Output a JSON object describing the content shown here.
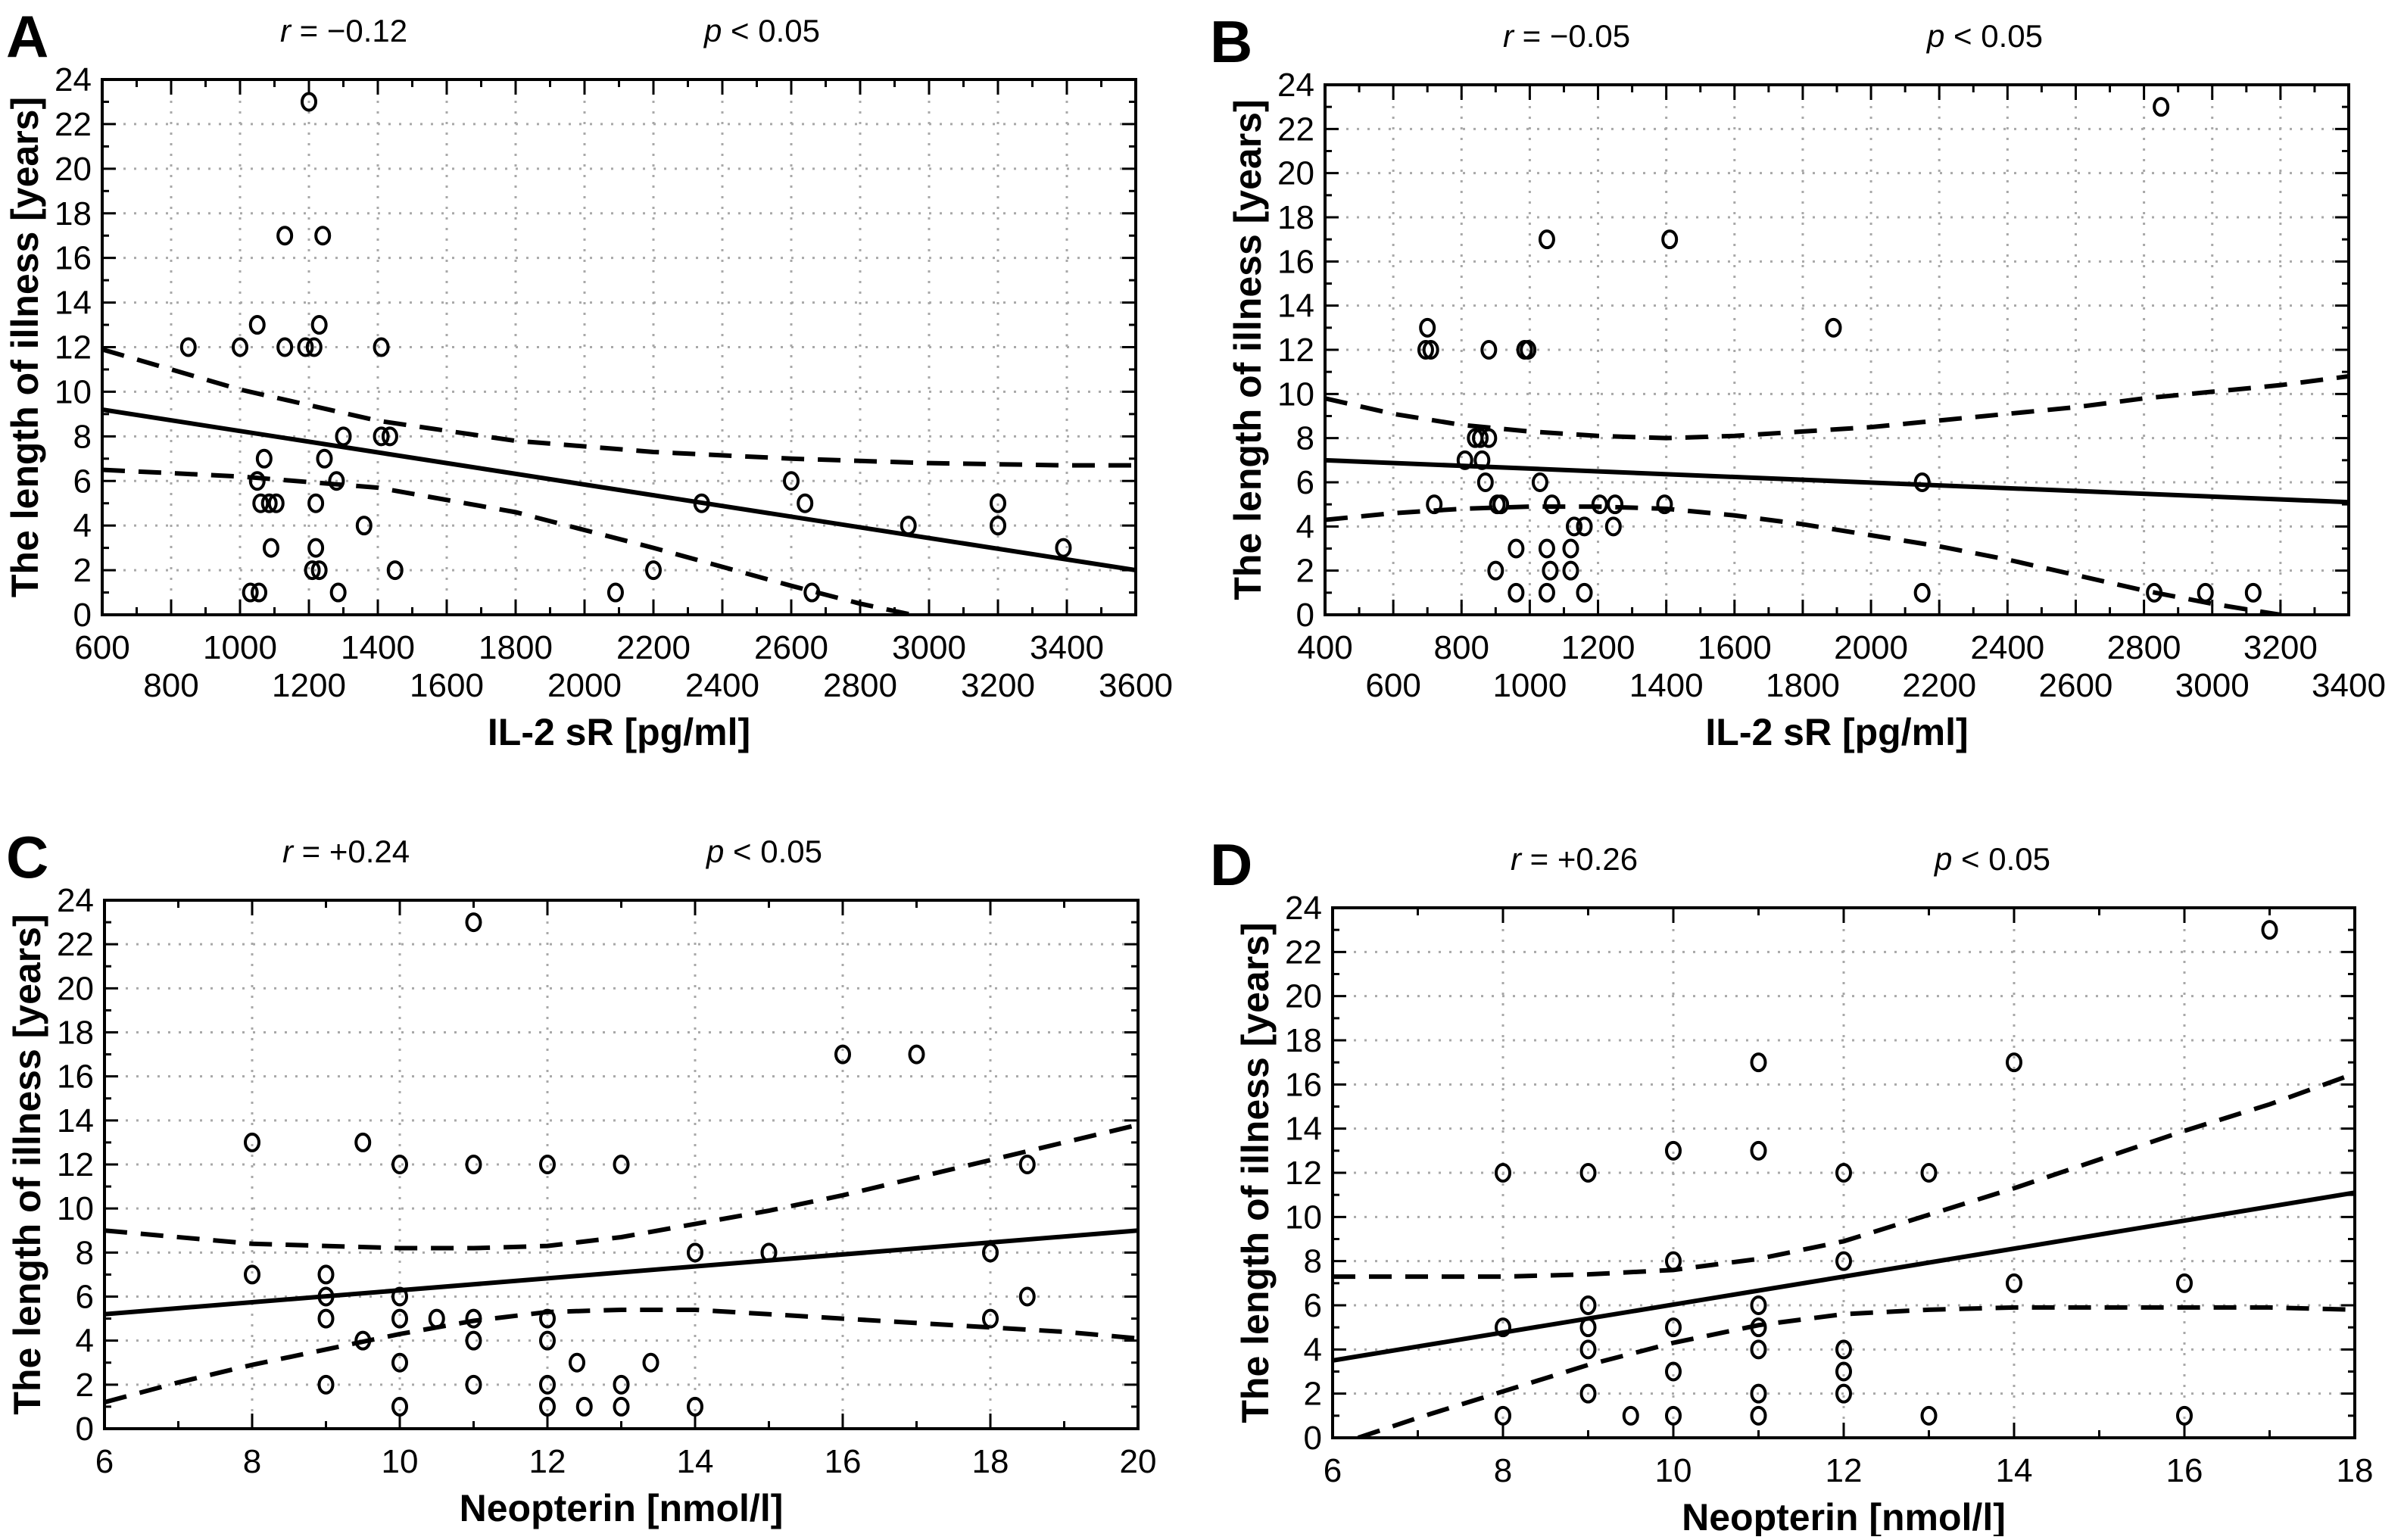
{
  "figure": {
    "stat_prefix_r": "r",
    "stat_prefix_p": "p"
  },
  "chart_data": [
    {
      "id": "A",
      "type": "scatter",
      "panel_label": "A",
      "r_text": "= −0.12",
      "p_text": "< 0.05",
      "xlabel": "IL-2 sR [pg/ml]",
      "ylabel": "The length of illness [years]",
      "xlim": [
        600,
        3600
      ],
      "ylim": [
        0,
        24
      ],
      "xticks_row1": [
        600,
        1000,
        1400,
        1800,
        2200,
        2600,
        3000,
        3400
      ],
      "xticks_row2": [
        800,
        1200,
        1600,
        2000,
        2400,
        2800,
        3200,
        3600
      ],
      "yticks": [
        0,
        2,
        4,
        6,
        8,
        10,
        12,
        14,
        16,
        18,
        20,
        22,
        24
      ],
      "grid": true,
      "x_minor_step": 100,
      "y_minor_step": 1,
      "points": [
        [
          1200,
          23
        ],
        [
          1130,
          17
        ],
        [
          1240,
          17
        ],
        [
          1050,
          13
        ],
        [
          1230,
          13
        ],
        [
          850,
          12
        ],
        [
          1000,
          12
        ],
        [
          1130,
          12
        ],
        [
          1190,
          12
        ],
        [
          1215,
          12
        ],
        [
          1410,
          12
        ],
        [
          1300,
          8
        ],
        [
          1410,
          8
        ],
        [
          1435,
          8
        ],
        [
          1070,
          7
        ],
        [
          1245,
          7
        ],
        [
          1050,
          6
        ],
        [
          1280,
          6
        ],
        [
          2600,
          6
        ],
        [
          1060,
          5
        ],
        [
          1085,
          5
        ],
        [
          1105,
          5
        ],
        [
          1220,
          5
        ],
        [
          2340,
          5
        ],
        [
          2640,
          5
        ],
        [
          3200,
          5
        ],
        [
          1360,
          4
        ],
        [
          2940,
          4
        ],
        [
          3200,
          4
        ],
        [
          1090,
          3
        ],
        [
          1220,
          3
        ],
        [
          3390,
          3
        ],
        [
          1210,
          2
        ],
        [
          1230,
          2
        ],
        [
          1450,
          2
        ],
        [
          2200,
          2
        ],
        [
          1030,
          1
        ],
        [
          1055,
          1
        ],
        [
          1285,
          1
        ],
        [
          2090,
          1
        ],
        [
          2660,
          1
        ]
      ],
      "fit_line": {
        "x": [
          600,
          3600
        ],
        "y": [
          9.2,
          2.0
        ]
      },
      "ci_upper": {
        "x": [
          600,
          1000,
          1400,
          1800,
          2200,
          2600,
          3000,
          3400,
          3600
        ],
        "y": [
          11.9,
          10.1,
          8.7,
          7.8,
          7.3,
          7.0,
          6.8,
          6.7,
          6.7
        ]
      },
      "ci_lower": {
        "x": [
          600,
          1000,
          1400,
          1800,
          2200,
          2600,
          2800,
          2950
        ],
        "y": [
          6.5,
          6.2,
          5.7,
          4.6,
          3.0,
          1.3,
          0.5,
          0.0
        ]
      }
    },
    {
      "id": "B",
      "type": "scatter",
      "panel_label": "B",
      "r_text": "= −0.05",
      "p_text": "< 0.05",
      "xlabel": "IL-2 sR [pg/ml]",
      "ylabel": "The length of illness [years]",
      "xlim": [
        400,
        3400
      ],
      "ylim": [
        0,
        24
      ],
      "xticks_row1": [
        400,
        800,
        1200,
        1600,
        2000,
        2400,
        2800,
        3200
      ],
      "xticks_row2": [
        600,
        1000,
        1400,
        1800,
        2200,
        2600,
        3000,
        3400
      ],
      "yticks": [
        0,
        2,
        4,
        6,
        8,
        10,
        12,
        14,
        16,
        18,
        20,
        22,
        24
      ],
      "grid": true,
      "x_minor_step": 100,
      "y_minor_step": 1,
      "points": [
        [
          2850,
          23
        ],
        [
          1050,
          17
        ],
        [
          1410,
          17
        ],
        [
          1890,
          13
        ],
        [
          700,
          13
        ],
        [
          695,
          12
        ],
        [
          710,
          12
        ],
        [
          880,
          12
        ],
        [
          985,
          12
        ],
        [
          995,
          12
        ],
        [
          840,
          8
        ],
        [
          855,
          8
        ],
        [
          880,
          8
        ],
        [
          810,
          7
        ],
        [
          860,
          7
        ],
        [
          870,
          6
        ],
        [
          1030,
          6
        ],
        [
          2150,
          6
        ],
        [
          720,
          5
        ],
        [
          905,
          5
        ],
        [
          915,
          5
        ],
        [
          1065,
          5
        ],
        [
          1205,
          5
        ],
        [
          1250,
          5
        ],
        [
          1395,
          5
        ],
        [
          1130,
          4
        ],
        [
          1160,
          4
        ],
        [
          1245,
          4
        ],
        [
          960,
          3
        ],
        [
          1050,
          3
        ],
        [
          1120,
          3
        ],
        [
          900,
          2
        ],
        [
          1060,
          2
        ],
        [
          1120,
          2
        ],
        [
          960,
          1
        ],
        [
          1050,
          1
        ],
        [
          1160,
          1
        ],
        [
          2150,
          1
        ],
        [
          2830,
          1
        ],
        [
          2980,
          1
        ],
        [
          3120,
          1
        ]
      ],
      "fit_line": {
        "x": [
          400,
          3400
        ],
        "y": [
          7.0,
          5.1
        ]
      },
      "ci_upper": {
        "x": [
          400,
          600,
          800,
          1000,
          1200,
          1400,
          1600,
          1800,
          2000,
          2200,
          2400,
          2600,
          2800,
          3000,
          3200,
          3400
        ],
        "y": [
          9.8,
          9.1,
          8.6,
          8.3,
          8.1,
          8.0,
          8.1,
          8.3,
          8.5,
          8.8,
          9.1,
          9.4,
          9.8,
          10.1,
          10.4,
          10.8
        ]
      },
      "ci_lower": {
        "x": [
          400,
          600,
          800,
          1000,
          1200,
          1400,
          1600,
          1800,
          2000,
          2200,
          2400,
          2600,
          2800,
          3000,
          3200
        ],
        "y": [
          4.3,
          4.6,
          4.8,
          4.9,
          4.9,
          4.8,
          4.5,
          4.1,
          3.6,
          3.1,
          2.5,
          1.8,
          1.1,
          0.5,
          0.0
        ]
      }
    },
    {
      "id": "C",
      "type": "scatter",
      "panel_label": "C",
      "r_text": "= +0.24",
      "p_text": "< 0.05",
      "xlabel": "Neopterin [nmol/l]",
      "ylabel": "The length of illness [years]",
      "xlim": [
        6,
        20
      ],
      "ylim": [
        0,
        24
      ],
      "xticks_row1": [
        6,
        8,
        10,
        12,
        14,
        16,
        18,
        20
      ],
      "xticks_row2": [],
      "yticks": [
        0,
        2,
        4,
        6,
        8,
        10,
        12,
        14,
        16,
        18,
        20,
        22,
        24
      ],
      "grid": true,
      "x_minor_step": 1,
      "y_minor_step": 1,
      "points": [
        [
          11,
          23
        ],
        [
          16,
          17
        ],
        [
          17,
          17
        ],
        [
          8,
          13
        ],
        [
          9.5,
          13
        ],
        [
          10,
          12
        ],
        [
          11,
          12
        ],
        [
          12,
          12
        ],
        [
          13,
          12
        ],
        [
          18.5,
          12
        ],
        [
          14,
          8
        ],
        [
          15,
          8
        ],
        [
          18,
          8
        ],
        [
          8,
          7
        ],
        [
          9,
          7
        ],
        [
          9,
          6
        ],
        [
          10,
          6
        ],
        [
          18.5,
          6
        ],
        [
          9,
          5
        ],
        [
          10,
          5
        ],
        [
          10.5,
          5
        ],
        [
          11,
          5
        ],
        [
          12,
          5
        ],
        [
          18,
          5
        ],
        [
          9.5,
          4
        ],
        [
          11,
          4
        ],
        [
          12,
          4
        ],
        [
          10,
          3
        ],
        [
          12.4,
          3
        ],
        [
          13.4,
          3
        ],
        [
          9,
          2
        ],
        [
          11,
          2
        ],
        [
          12,
          2
        ],
        [
          13,
          2
        ],
        [
          10,
          1
        ],
        [
          12,
          1
        ],
        [
          12.5,
          1
        ],
        [
          13,
          1
        ],
        [
          14,
          1
        ]
      ],
      "fit_line": {
        "x": [
          6,
          20
        ],
        "y": [
          5.2,
          9.0
        ]
      },
      "ci_upper": {
        "x": [
          6,
          8,
          10,
          11,
          12,
          13,
          14,
          15,
          16,
          17,
          18,
          19,
          20
        ],
        "y": [
          9.0,
          8.4,
          8.2,
          8.2,
          8.3,
          8.7,
          9.3,
          9.9,
          10.6,
          11.4,
          12.2,
          13.0,
          13.8
        ]
      },
      "ci_lower": {
        "x": [
          6,
          7,
          8,
          9,
          10,
          11,
          12,
          13,
          14,
          15,
          16,
          17,
          18,
          19,
          20
        ],
        "y": [
          1.2,
          2.1,
          2.9,
          3.6,
          4.3,
          4.9,
          5.3,
          5.4,
          5.4,
          5.2,
          5.0,
          4.8,
          4.6,
          4.4,
          4.1
        ]
      }
    },
    {
      "id": "D",
      "type": "scatter",
      "panel_label": "D",
      "r_text": "= +0.26",
      "p_text": "< 0.05",
      "xlabel": "Neopterin [nmol/l]",
      "ylabel": "The length of illness [years]",
      "xlim": [
        6,
        18
      ],
      "ylim": [
        0,
        24
      ],
      "xticks_row1": [
        6,
        8,
        10,
        12,
        14,
        16,
        18
      ],
      "xticks_row2": [],
      "yticks": [
        0,
        2,
        4,
        6,
        8,
        10,
        12,
        14,
        16,
        18,
        20,
        22,
        24
      ],
      "grid": true,
      "x_minor_step": 1,
      "y_minor_step": 1,
      "points": [
        [
          17,
          23
        ],
        [
          11,
          17
        ],
        [
          14,
          17
        ],
        [
          10,
          13
        ],
        [
          11,
          13
        ],
        [
          8,
          12
        ],
        [
          9,
          12
        ],
        [
          12,
          12
        ],
        [
          13,
          12
        ],
        [
          10,
          8
        ],
        [
          12,
          8
        ],
        [
          14,
          7
        ],
        [
          16,
          7
        ],
        [
          9,
          6
        ],
        [
          11,
          6
        ],
        [
          8,
          5
        ],
        [
          9,
          5
        ],
        [
          10,
          5
        ],
        [
          11,
          5
        ],
        [
          9,
          4
        ],
        [
          11,
          4
        ],
        [
          12,
          4
        ],
        [
          10,
          3
        ],
        [
          12,
          3
        ],
        [
          9,
          2
        ],
        [
          11,
          2
        ],
        [
          12,
          2
        ],
        [
          8,
          1
        ],
        [
          9.5,
          1
        ],
        [
          10,
          1
        ],
        [
          11,
          1
        ],
        [
          13,
          1
        ],
        [
          16,
          1
        ]
      ],
      "fit_line": {
        "x": [
          6,
          18
        ],
        "y": [
          3.5,
          11.1
        ]
      },
      "ci_upper": {
        "x": [
          6,
          7,
          8,
          9,
          10,
          11,
          12,
          13,
          14,
          15,
          16,
          17,
          18
        ],
        "y": [
          7.3,
          7.3,
          7.3,
          7.4,
          7.6,
          8.1,
          8.9,
          10.1,
          11.3,
          12.6,
          13.9,
          15.1,
          16.5
        ]
      },
      "ci_lower": {
        "x": [
          6.3,
          7,
          8,
          9,
          10,
          11,
          12,
          13,
          14,
          15,
          16,
          17,
          18
        ],
        "y": [
          0.0,
          0.9,
          2.1,
          3.3,
          4.3,
          5.1,
          5.6,
          5.8,
          5.9,
          5.9,
          5.9,
          5.9,
          5.8
        ]
      }
    }
  ]
}
